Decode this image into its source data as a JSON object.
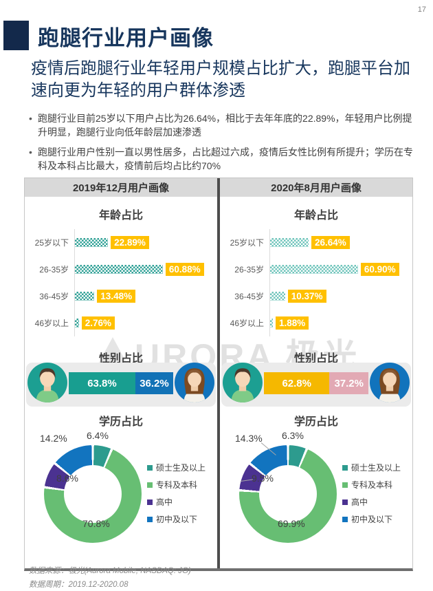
{
  "page": {
    "number": "17"
  },
  "header": {
    "title": "跑腿行业用户画像",
    "subtitle": "疫情后跑腿行业年轻用户规模占比扩大，跑腿平台加速向更为年轻的用户群体渗透"
  },
  "bullets": [
    "跑腿行业目前25岁以下用户占比为26.64%，相比于去年年底的22.89%，年轻用户比例提升明显，跑腿行业向低年龄层加速渗透",
    "跑腿行业用户性别一直以男性居多，占比超过六成，疫情后女性比例有所提升；学历在专科及本科占比最大，疫情前后均占比约70%"
  ],
  "watermark": "URORA 极光",
  "colors": {
    "title_navy": "#17365d",
    "badge_yellow": "#ffc000",
    "panel_header_gray": "#d9d9d9",
    "divider_dark": "#4d4d4d"
  },
  "chart_data": [
    {
      "panel": "2019年12月用户画像",
      "age": {
        "type": "bar",
        "title": "年龄占比",
        "categories": [
          "25岁以下",
          "26-35岁",
          "36-45岁",
          "46岁以上"
        ],
        "values": [
          22.89,
          60.88,
          13.48,
          2.76
        ],
        "unit": "%",
        "xlim": [
          0,
          65
        ],
        "bar_color": "#2fa096",
        "label_bg": "#ffc000"
      },
      "gender": {
        "type": "bar",
        "title": "性别占比",
        "categories": [
          "男",
          "女"
        ],
        "values": [
          63.8,
          36.2
        ],
        "unit": "%",
        "colors": [
          "#189e90",
          "#1272b6"
        ]
      },
      "education": {
        "type": "pie",
        "title": "学历占比",
        "categories": [
          "硕士生及以上",
          "专科及本科",
          "高中",
          "初中及以下"
        ],
        "values": [
          6.4,
          70.8,
          8.6,
          14.2
        ],
        "unit": "%",
        "colors": [
          "#2d9b8e",
          "#67be73",
          "#4b3291",
          "#1274bf"
        ],
        "legend_position": "right"
      }
    },
    {
      "panel": "2020年8月用户画像",
      "age": {
        "type": "bar",
        "title": "年龄占比",
        "categories": [
          "25岁以下",
          "26-35岁",
          "36-45岁",
          "46岁以上"
        ],
        "values": [
          26.64,
          60.9,
          10.37,
          1.88
        ],
        "unit": "%",
        "xlim": [
          0,
          65
        ],
        "bar_color": "#6fc4bb",
        "label_bg": "#ffc000"
      },
      "gender": {
        "type": "bar",
        "title": "性别占比",
        "categories": [
          "男",
          "女"
        ],
        "values": [
          62.8,
          37.2
        ],
        "unit": "%",
        "colors": [
          "#f5b800",
          "#e2a9b4"
        ]
      },
      "education": {
        "type": "pie",
        "title": "学历占比",
        "categories": [
          "硕士生及以上",
          "专科及本科",
          "高中",
          "初中及以下"
        ],
        "values": [
          6.3,
          69.9,
          9.5,
          14.3
        ],
        "unit": "%",
        "colors": [
          "#2d9b8e",
          "#67be73",
          "#4b3291",
          "#1274bf"
        ],
        "legend_position": "right"
      }
    }
  ],
  "footer": {
    "source": "数据来源：极光(Aurora Mobile, NASDAQ: JG)",
    "period": "数据周期：2019.12-2020.08"
  }
}
